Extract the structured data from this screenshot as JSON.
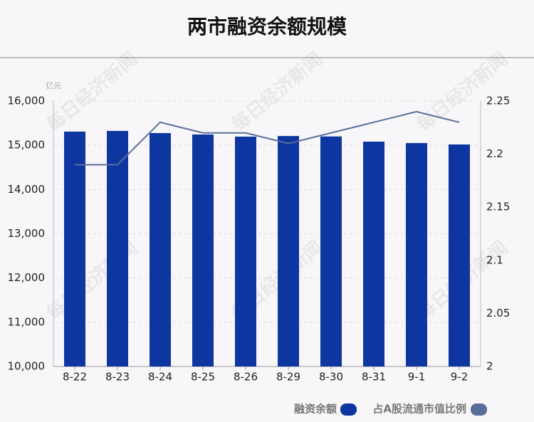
{
  "chart_data": {
    "type": "bar",
    "title": "两市融资余额规模",
    "y_unit": "亿元",
    "watermark": "每日经济新闻",
    "categories": [
      "8-22",
      "8-23",
      "8-24",
      "8-25",
      "8-26",
      "8-29",
      "8-30",
      "8-31",
      "9-1",
      "9-2"
    ],
    "series": [
      {
        "name": "融资余额",
        "type": "bar",
        "color": "#0d36a1",
        "values": [
          15310,
          15325,
          15276,
          15244,
          15196,
          15210,
          15200,
          15083,
          15050,
          15019
        ]
      },
      {
        "name": "占A股流通市值比例",
        "type": "line",
        "axis": "y2",
        "color": "#5a6e9c",
        "values": [
          2.19,
          2.19,
          2.23,
          2.22,
          2.22,
          2.21,
          2.22,
          2.23,
          2.24,
          2.23
        ]
      }
    ],
    "ylim": [
      10000,
      16000
    ],
    "yticks": [
      {
        "value": 10000,
        "label": "10,000"
      },
      {
        "value": 11000,
        "label": "11,000"
      },
      {
        "value": 12000,
        "label": "12,000"
      },
      {
        "value": 13000,
        "label": "13,000"
      },
      {
        "value": 14000,
        "label": "14,000"
      },
      {
        "value": 15000,
        "label": "15,000"
      },
      {
        "value": 16000,
        "label": "16,000"
      }
    ],
    "y2lim": [
      2,
      2.25
    ],
    "y2ticks": [
      2,
      2.05,
      2.1,
      2.15,
      2.2,
      2.25
    ],
    "grid": true
  }
}
